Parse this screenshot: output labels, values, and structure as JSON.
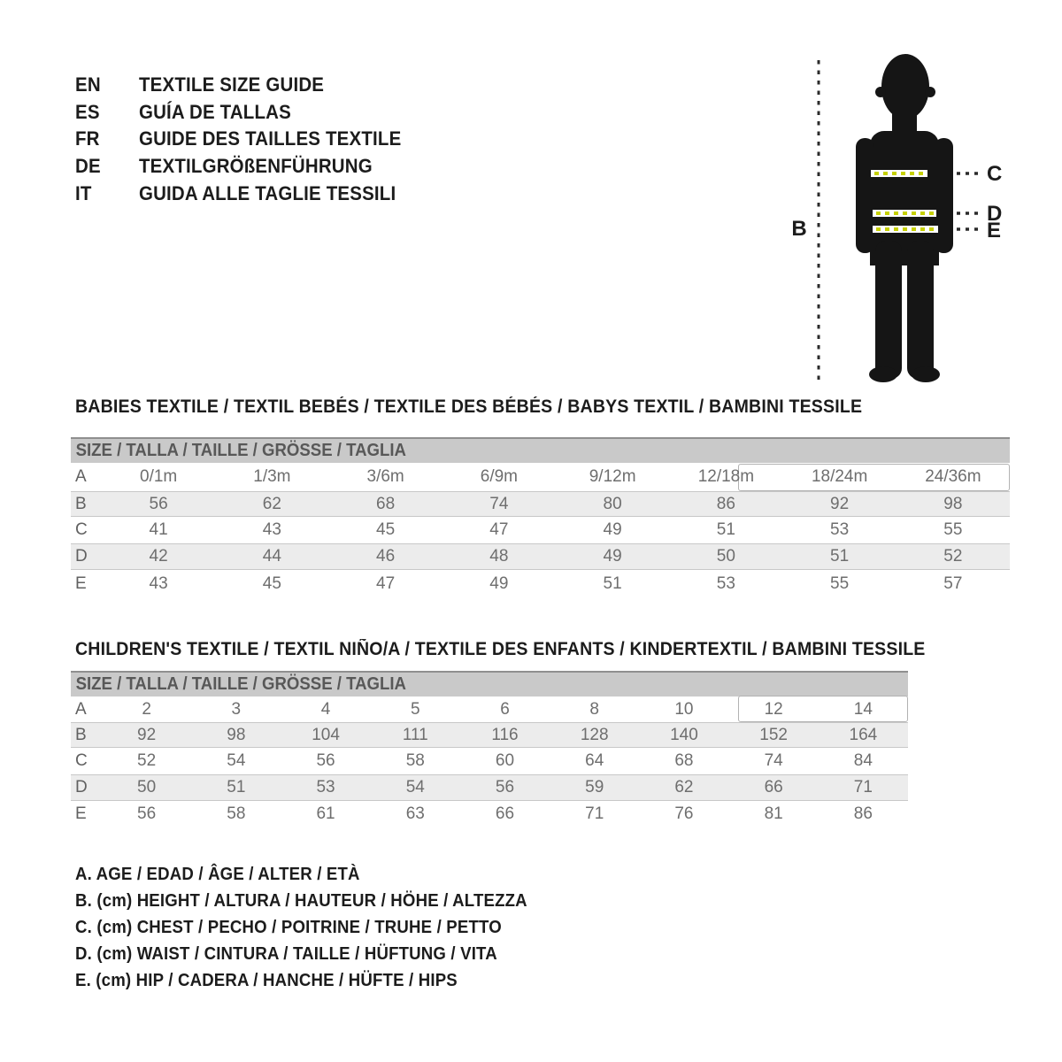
{
  "languages": [
    {
      "code": "EN",
      "label": "TEXTILE SIZE GUIDE"
    },
    {
      "code": "ES",
      "label": "GUÍA DE TALLAS"
    },
    {
      "code": "FR",
      "label": "GUIDE DES TAILLES TEXTILE"
    },
    {
      "code": "DE",
      "label": "TEXTILGRÖßENFÜHRUNG"
    },
    {
      "code": "IT",
      "label": "GUIDA ALLE TAGLIE TESSILI"
    }
  ],
  "figure": {
    "height_label": "B",
    "chest_label": "C",
    "waist_label": "D",
    "hip_label": "E",
    "silhouette_color": "#151515",
    "accent_color": "#c6d000"
  },
  "babies": {
    "title": "BABIES TEXTILE / TEXTIL BEBÉS / TEXTILE DES BÉBÉS / BABYS TEXTIL / BAMBINI TESSILE",
    "size_header": "SIZE / TALLA / TAILLE / GRÖSSE / TAGLIA",
    "rows": [
      {
        "label": "A",
        "values": [
          "0/1m",
          "1/3m",
          "3/6m",
          "6/9m",
          "9/12m",
          "12/18m",
          "18/24m",
          "24/36m"
        ]
      },
      {
        "label": "B",
        "values": [
          "56",
          "62",
          "68",
          "74",
          "80",
          "86",
          "92",
          "98"
        ]
      },
      {
        "label": "C",
        "values": [
          "41",
          "43",
          "45",
          "47",
          "49",
          "51",
          "53",
          "55"
        ]
      },
      {
        "label": "D",
        "values": [
          "42",
          "44",
          "46",
          "48",
          "49",
          "50",
          "51",
          "52"
        ]
      },
      {
        "label": "E",
        "values": [
          "43",
          "45",
          "47",
          "49",
          "51",
          "53",
          "55",
          "57"
        ]
      }
    ]
  },
  "children": {
    "title": "CHILDREN'S TEXTILE / TEXTIL NIÑO/A / TEXTILE DES ENFANTS / KINDERTEXTIL / BAMBINI TESSILE",
    "size_header": "SIZE / TALLA / TAILLE / GRÖSSE / TAGLIA",
    "rows": [
      {
        "label": "A",
        "values": [
          "2",
          "3",
          "4",
          "5",
          "6",
          "8",
          "10",
          "12",
          "14"
        ]
      },
      {
        "label": "B",
        "values": [
          "92",
          "98",
          "104",
          "111",
          "116",
          "128",
          "140",
          "152",
          "164"
        ]
      },
      {
        "label": "C",
        "values": [
          "52",
          "54",
          "56",
          "58",
          "60",
          "64",
          "68",
          "74",
          "84"
        ]
      },
      {
        "label": "D",
        "values": [
          "50",
          "51",
          "53",
          "54",
          "56",
          "59",
          "62",
          "66",
          "71"
        ]
      },
      {
        "label": "E",
        "values": [
          "56",
          "58",
          "61",
          "63",
          "66",
          "71",
          "76",
          "81",
          "86"
        ]
      }
    ]
  },
  "legend": [
    "A. AGE / EDAD / ÂGE / ALTER / ETÀ",
    "B. (cm) HEIGHT / ALTURA / HAUTEUR / HÖHE / ALTEZZA",
    "C. (cm) CHEST / PECHO / POITRINE / TRUHE / PETTO",
    "D. (cm) WAIST / CINTURA / TAILLE / HÜFTUNG / VITA",
    "E. (cm) HIP / CADERA / HANCHE / HÜFTE / HIPS"
  ]
}
